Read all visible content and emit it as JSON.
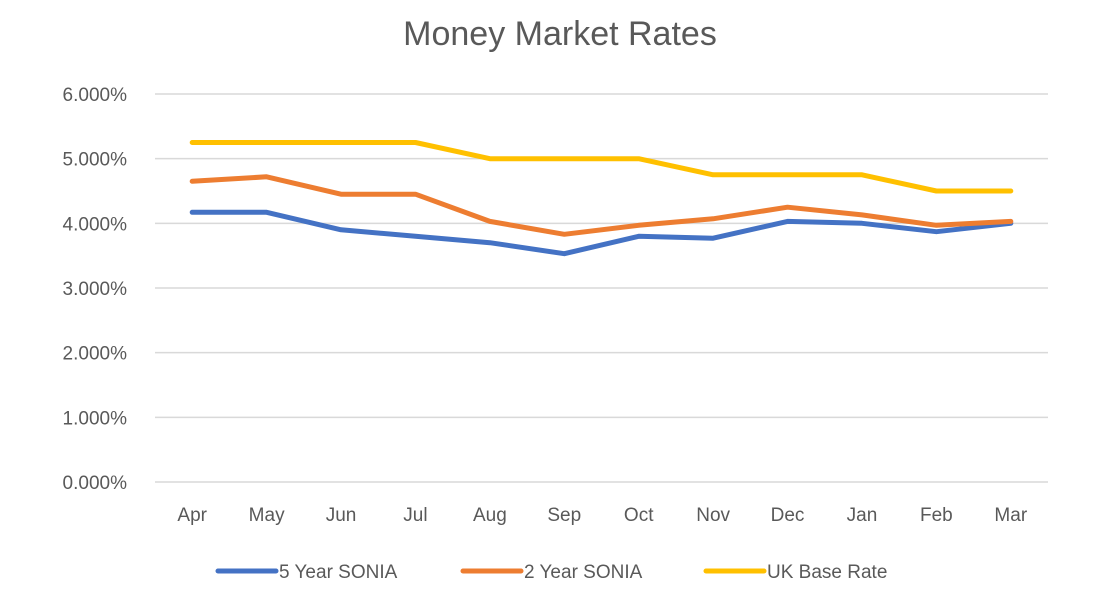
{
  "chart_data": {
    "type": "line",
    "title": "Money Market Rates",
    "xlabel": "",
    "ylabel": "",
    "categories": [
      "Apr",
      "May",
      "Jun",
      "Jul",
      "Aug",
      "Sep",
      "Oct",
      "Nov",
      "Dec",
      "Jan",
      "Feb",
      "Mar"
    ],
    "ylim": [
      0,
      6
    ],
    "yticks": [
      0,
      1,
      2,
      3,
      4,
      5,
      6
    ],
    "ytick_labels": [
      "0.000%",
      "1.000%",
      "2.000%",
      "3.000%",
      "4.000%",
      "5.000%",
      "6.000%"
    ],
    "grid": true,
    "legend_position": "bottom",
    "series": [
      {
        "name": "5 Year SONIA",
        "color": "#4472C4",
        "values": [
          4.17,
          4.17,
          3.9,
          3.8,
          3.7,
          3.53,
          3.8,
          3.77,
          4.03,
          4.0,
          3.87,
          4.0
        ]
      },
      {
        "name": "2 Year SONIA",
        "color": "#ED7D31",
        "values": [
          4.65,
          4.72,
          4.45,
          4.45,
          4.03,
          3.83,
          3.97,
          4.07,
          4.25,
          4.13,
          3.97,
          4.03
        ]
      },
      {
        "name": "UK Base Rate",
        "color": "#FFC000",
        "values": [
          5.25,
          5.25,
          5.25,
          5.25,
          5.0,
          5.0,
          5.0,
          4.75,
          4.75,
          4.75,
          4.5,
          4.5
        ]
      }
    ]
  }
}
